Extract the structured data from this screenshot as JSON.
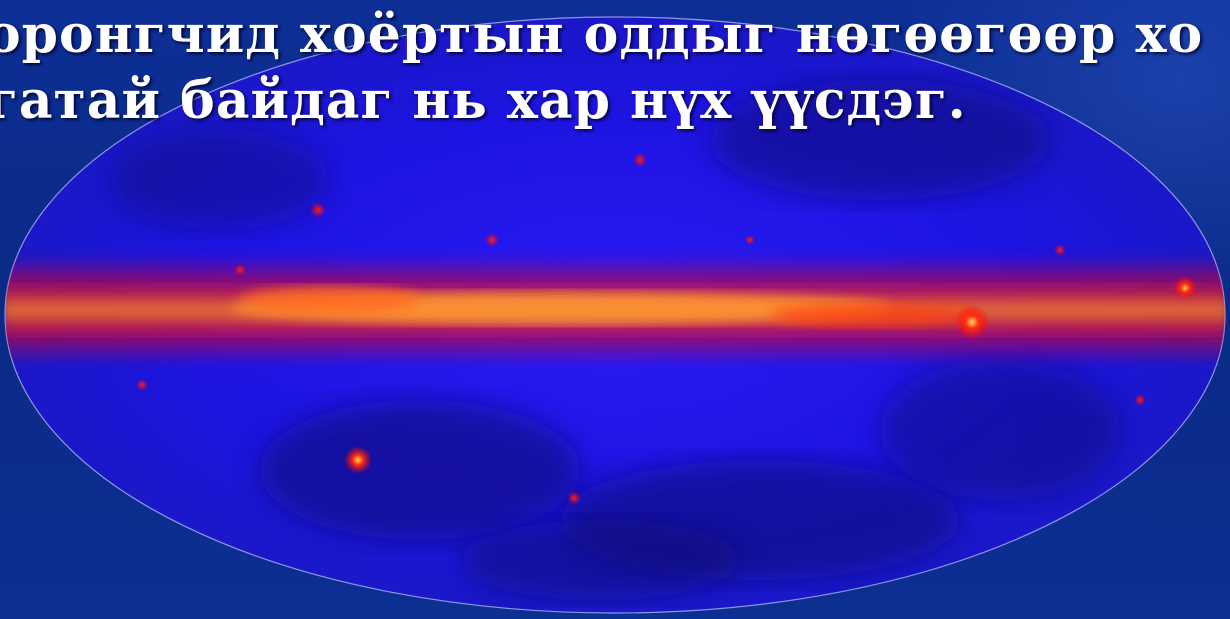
{
  "caption": {
    "line1": "оронгчид хоёртын оддыг нөгөөгөөр хо",
    "line2": "гатай байдаг нь хар нүх үүсдэг."
  },
  "colors": {
    "background": "#0b2a8a",
    "sky_base": "#1a1ae0",
    "plane_core": "#ff7a10",
    "plane_glow": "#ff1a1a",
    "caption_text": "#ffffff"
  }
}
